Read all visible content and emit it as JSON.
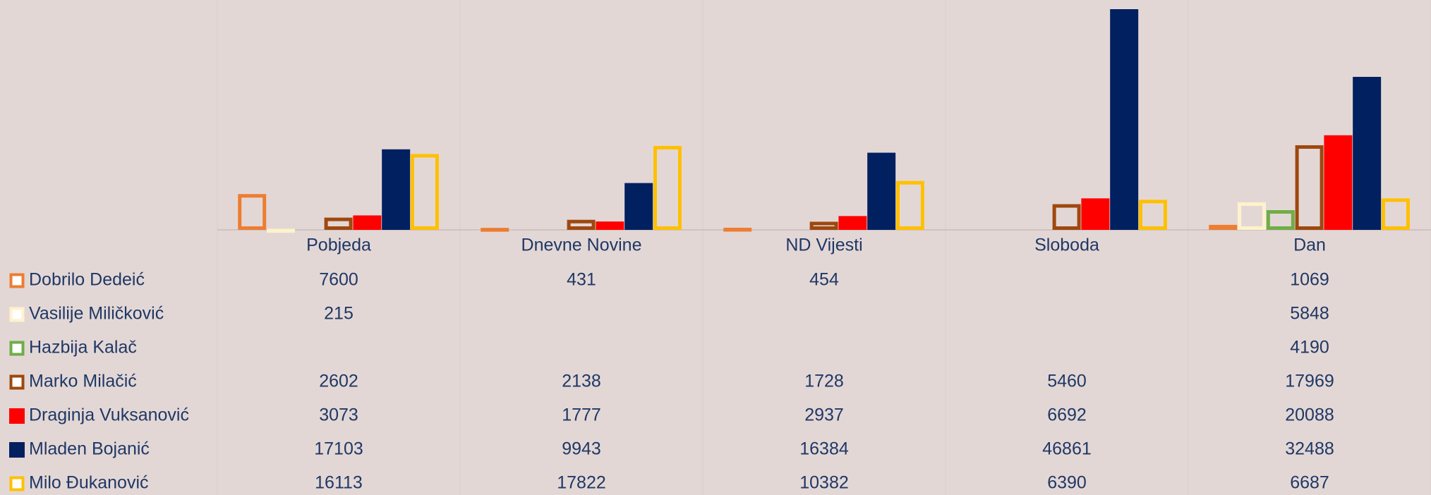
{
  "chart_data": {
    "type": "bar",
    "categories": [
      "Pobjeda",
      "Dnevne Novine",
      "ND Vijesti",
      "Sloboda",
      "Dan"
    ],
    "series": [
      {
        "name": "Dobrilo Dedeić",
        "color": "#ED7D31",
        "style": "outline",
        "values": [
          7600,
          431,
          454,
          null,
          1069
        ]
      },
      {
        "name": "Vasilije Miličković",
        "color": "#FFF2CC",
        "style": "outline",
        "values": [
          215,
          null,
          null,
          null,
          5848
        ]
      },
      {
        "name": "Hazbija Kalač",
        "color": "#70AD47",
        "style": "outline",
        "values": [
          null,
          null,
          null,
          null,
          4190
        ]
      },
      {
        "name": "Marko Milačić",
        "color": "#9E480E",
        "style": "outline",
        "values": [
          2602,
          2138,
          1728,
          5460,
          17969
        ]
      },
      {
        "name": "Draginja Vuksanović",
        "color": "#FF0000",
        "style": "fill",
        "values": [
          3073,
          1777,
          2937,
          6692,
          20088
        ]
      },
      {
        "name": "Mladen Bojanić",
        "color": "#002060",
        "style": "fill",
        "values": [
          17103,
          9943,
          16384,
          46861,
          32488
        ]
      },
      {
        "name": "Milo Đukanović",
        "color": "#FFC000",
        "style": "outline",
        "values": [
          16113,
          17822,
          10382,
          6390,
          6687
        ]
      }
    ]
  }
}
